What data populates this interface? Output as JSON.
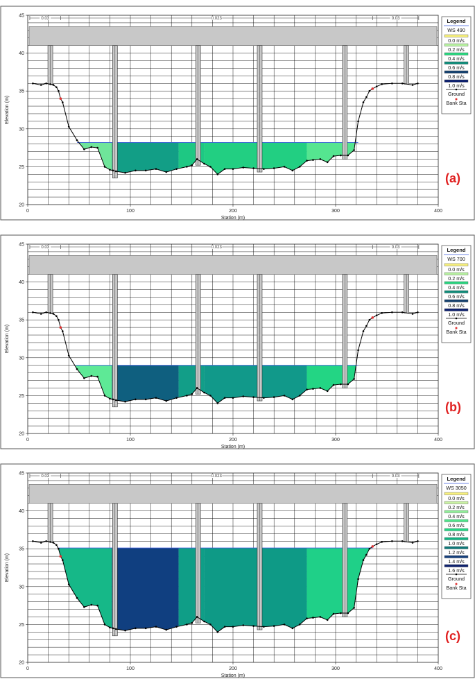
{
  "chart_data": [
    {
      "type": "area",
      "panel_label": "(a)",
      "xlabel": "Station (m)",
      "ylabel": "Elevation (m)",
      "xlim": [
        0,
        400
      ],
      "ylim": [
        20,
        45
      ],
      "xticks": [
        "0",
        "100",
        "200",
        "300",
        "400"
      ],
      "yticks": [
        "20",
        "25",
        "30",
        "35",
        "40",
        "45"
      ],
      "manning_n": [
        "0.03",
        "0.023",
        "0.03"
      ],
      "legend": {
        "title": "Legend",
        "ws_label": "WS 490",
        "items": [
          "0.0 m/s",
          "0.2 m/s",
          "0.4 m/s",
          "0.6 m/s",
          "0.8 m/s",
          "1.0 m/s"
        ],
        "item_colors": [
          "#f7f07a",
          "#b7f3a0",
          "#27d67e",
          "#0e8c7a",
          "#14406e",
          "#0c1f6e"
        ],
        "ground_label": "Ground",
        "bank_label": "Bank Sta"
      },
      "water_surface": 28.2,
      "ground": {
        "x": [
          5,
          13,
          18,
          22,
          25,
          28,
          30,
          32,
          34,
          40,
          48,
          55,
          62,
          68,
          75,
          80,
          83,
          86,
          95,
          105,
          115,
          125,
          135,
          145,
          155,
          160,
          165,
          172,
          178,
          185,
          192,
          200,
          210,
          220,
          230,
          240,
          250,
          258,
          265,
          272,
          278,
          285,
          292,
          298,
          305,
          312,
          318,
          322,
          327,
          330,
          333,
          336,
          340,
          345,
          355,
          365,
          375,
          380
        ],
        "y": [
          36.0,
          35.8,
          36.0,
          35.9,
          35.8,
          35.5,
          35.0,
          34.0,
          33.5,
          30.3,
          28.5,
          27.3,
          27.6,
          27.5,
          25.0,
          24.6,
          24.5,
          24.4,
          24.2,
          24.5,
          24.5,
          24.7,
          24.3,
          24.7,
          25.0,
          25.2,
          26.0,
          25.4,
          25.0,
          24.0,
          24.7,
          24.7,
          24.9,
          24.8,
          24.7,
          24.8,
          25.0,
          24.5,
          25.0,
          25.8,
          25.9,
          26.0,
          25.6,
          26.4,
          26.5,
          26.5,
          27.2,
          31.0,
          33.5,
          34.2,
          35.0,
          35.3,
          35.6,
          35.9,
          36.0,
          36.0,
          35.8,
          36.0
        ]
      },
      "bank_stations": [
        [
          32,
          34.0
        ],
        [
          336,
          35.3
        ]
      ],
      "velocity_zones": [
        {
          "from": 48,
          "to": 82,
          "value": "0.2 m/s",
          "color": "#6fe59a"
        },
        {
          "from": 82,
          "to": 147,
          "value": "0.6 m/s",
          "color": "#129e86"
        },
        {
          "from": 147,
          "to": 172,
          "value": "0.4 m/s",
          "color": "#1ec883"
        },
        {
          "from": 172,
          "to": 272,
          "value": "0.4 m/s",
          "color": "#22cf82"
        },
        {
          "from": 272,
          "to": 322,
          "value": "0.2 m/s",
          "color": "#55e590"
        }
      ]
    },
    {
      "type": "area",
      "panel_label": "(b)",
      "xlabel": "Station (m)",
      "ylabel": "Elevation (m)",
      "xlim": [
        0,
        400
      ],
      "ylim": [
        20,
        45
      ],
      "xticks": [
        "0",
        "100",
        "200",
        "300",
        "400"
      ],
      "yticks": [
        "20",
        "25",
        "30",
        "35",
        "40",
        "45"
      ],
      "manning_n": [
        "0.03",
        "0.023",
        "0.03"
      ],
      "legend": {
        "title": "Legend",
        "ws_label": "WS 700",
        "items": [
          "0.0 m/s",
          "0.2 m/s",
          "0.4 m/s",
          "0.6 m/s",
          "0.8 m/s",
          "1.0 m/s"
        ],
        "item_colors": [
          "#f7f07a",
          "#b7f3a0",
          "#27d67e",
          "#0e8c7a",
          "#14406e",
          "#0c1f6e"
        ],
        "ground_label": "Ground",
        "bank_label": "Bank Sta"
      },
      "water_surface": 29.0,
      "ground": {
        "x": [
          5,
          13,
          18,
          22,
          25,
          28,
          30,
          32,
          34,
          40,
          48,
          55,
          62,
          68,
          75,
          80,
          83,
          86,
          95,
          105,
          115,
          125,
          135,
          145,
          155,
          160,
          165,
          172,
          178,
          185,
          192,
          200,
          210,
          220,
          230,
          240,
          250,
          258,
          265,
          272,
          278,
          285,
          292,
          298,
          305,
          312,
          318,
          322,
          327,
          330,
          333,
          336,
          340,
          345,
          355,
          365,
          375,
          380
        ],
        "y": [
          36.0,
          35.8,
          36.0,
          35.9,
          35.8,
          35.5,
          35.0,
          34.0,
          33.5,
          30.3,
          28.5,
          27.3,
          27.6,
          27.5,
          25.0,
          24.6,
          24.5,
          24.4,
          24.2,
          24.5,
          24.5,
          24.7,
          24.3,
          24.7,
          25.0,
          25.2,
          26.0,
          25.4,
          25.0,
          24.0,
          24.7,
          24.7,
          24.9,
          24.8,
          24.7,
          24.8,
          25.0,
          24.5,
          25.0,
          25.8,
          25.9,
          26.0,
          25.6,
          26.4,
          26.5,
          26.5,
          27.2,
          31.0,
          33.5,
          34.2,
          35.0,
          35.3,
          35.6,
          35.9,
          36.0,
          36.0,
          35.8,
          36.0
        ]
      },
      "bank_stations": [
        [
          32,
          34.0
        ],
        [
          336,
          35.3
        ]
      ],
      "velocity_zones": [
        {
          "from": 47,
          "to": 82,
          "value": "0.2 m/s",
          "color": "#5ee996"
        },
        {
          "from": 82,
          "to": 147,
          "value": "0.8 m/s",
          "color": "#0f5f7f"
        },
        {
          "from": 147,
          "to": 172,
          "value": "0.6 m/s",
          "color": "#129e88"
        },
        {
          "from": 172,
          "to": 272,
          "value": "0.6 m/s",
          "color": "#11998a"
        },
        {
          "from": 272,
          "to": 322,
          "value": "0.4 m/s",
          "color": "#23d584"
        }
      ]
    },
    {
      "type": "area",
      "panel_label": "(c)",
      "xlabel": "Station (m)",
      "ylabel": "Elevation (m)",
      "xlim": [
        0,
        400
      ],
      "ylim": [
        20,
        45
      ],
      "xticks": [
        "0",
        "100",
        "200",
        "300",
        "400"
      ],
      "yticks": [
        "20",
        "25",
        "30",
        "35",
        "40",
        "45"
      ],
      "manning_n": [
        "0.03",
        "0.023",
        "0.03"
      ],
      "legend": {
        "title": "Legend",
        "ws_label": "WS 3050",
        "items": [
          "0.0 m/s",
          "0.2 m/s",
          "0.4 m/s",
          "0.6 m/s",
          "0.8 m/s",
          "1.0 m/s",
          "1.2 m/s",
          "1.4 m/s",
          "1.6 m/s"
        ],
        "item_colors": [
          "#f7f07a",
          "#c9f2a2",
          "#8fee98",
          "#4fe58a",
          "#22d884",
          "#0fb482",
          "#0e7a7a",
          "#143f7c",
          "#0c1f6e"
        ],
        "ground_label": "Ground",
        "bank_label": "Bank Sta"
      },
      "water_surface": 35.1,
      "ground": {
        "x": [
          5,
          13,
          18,
          22,
          25,
          28,
          30,
          32,
          34,
          40,
          48,
          55,
          62,
          68,
          75,
          80,
          83,
          86,
          95,
          105,
          115,
          125,
          135,
          145,
          155,
          160,
          165,
          172,
          178,
          185,
          192,
          200,
          210,
          220,
          230,
          240,
          250,
          258,
          265,
          272,
          278,
          285,
          292,
          298,
          305,
          312,
          318,
          322,
          327,
          330,
          333,
          336,
          340,
          345,
          355,
          365,
          375,
          380
        ],
        "y": [
          36.0,
          35.8,
          36.0,
          35.9,
          35.8,
          35.5,
          35.0,
          34.0,
          33.5,
          30.3,
          28.5,
          27.3,
          27.6,
          27.5,
          25.0,
          24.6,
          24.5,
          24.4,
          24.2,
          24.5,
          24.5,
          24.7,
          24.3,
          24.7,
          25.0,
          25.2,
          26.0,
          25.4,
          25.0,
          24.0,
          24.7,
          24.7,
          24.9,
          24.8,
          24.7,
          24.8,
          25.0,
          24.5,
          25.0,
          25.8,
          25.9,
          26.0,
          25.6,
          26.4,
          26.5,
          26.5,
          27.2,
          31.0,
          33.5,
          34.2,
          35.0,
          35.3,
          35.6,
          35.9,
          36.0,
          36.0,
          35.8,
          36.0
        ]
      },
      "bank_stations": [
        [
          32,
          34.0
        ],
        [
          336,
          35.3
        ]
      ],
      "velocity_zones": [
        {
          "from": 30,
          "to": 82,
          "value": "1.0 m/s",
          "color": "#16b888"
        },
        {
          "from": 82,
          "to": 147,
          "value": "1.4 m/s",
          "color": "#103f80"
        },
        {
          "from": 147,
          "to": 172,
          "value": "1.0 m/s",
          "color": "#0f9e87"
        },
        {
          "from": 172,
          "to": 272,
          "value": "1.0 m/s",
          "color": "#0e9a86"
        },
        {
          "from": 272,
          "to": 336,
          "value": "0.8 m/s",
          "color": "#1fd088"
        }
      ]
    }
  ],
  "bridge": {
    "deck_low": 41.0,
    "deck_high": 43.5,
    "deck_color": "#c8c8c8",
    "piers": [
      {
        "station": 85,
        "bottom": 23.5,
        "width": 7
      },
      {
        "station": 166,
        "bottom": 25.2,
        "width": 7
      },
      {
        "station": 226,
        "bottom": 24.3,
        "width": 7
      },
      {
        "station": 309,
        "bottom": 26.0,
        "width": 7
      },
      {
        "station": 22,
        "bottom": 35.9,
        "width": 7
      },
      {
        "station": 369,
        "bottom": 35.9,
        "width": 7
      }
    ]
  }
}
